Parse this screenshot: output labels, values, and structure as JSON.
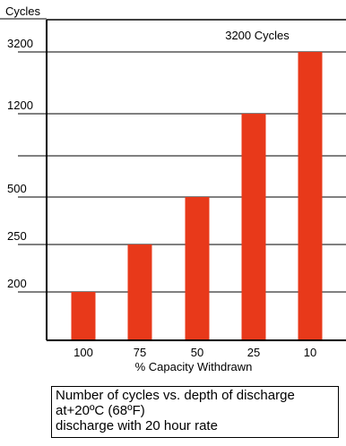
{
  "chart_data": {
    "type": "bar",
    "categories": [
      "100",
      "75",
      "50",
      "25",
      "10"
    ],
    "values": [
      200,
      250,
      500,
      1200,
      3200
    ],
    "ylabel": "Cycles",
    "xlabel": "% Capacity Withdrawn",
    "y_ticks": [
      "200",
      "250",
      "500",
      "1200",
      "3200"
    ],
    "annotation": "3200 Cycles",
    "bar_color": "#e8391a",
    "grid": true
  },
  "caption": {
    "lines": [
      "Number of cycles vs. depth of discharge",
      "at+20ºC (68ºF)",
      "discharge with 20 hour rate"
    ]
  }
}
